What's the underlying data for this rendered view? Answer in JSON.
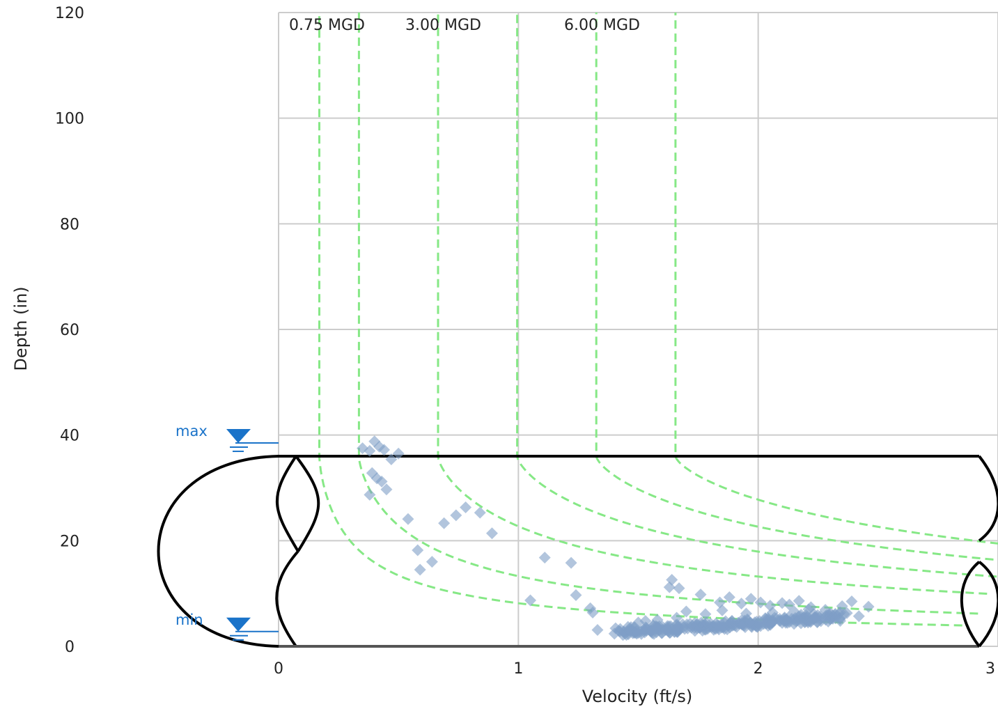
{
  "chart_data": {
    "type": "scatter",
    "xlabel": "Velocity (ft/s)",
    "ylabel": "Depth (in)",
    "xlim": [
      0,
      3
    ],
    "ylim": [
      0,
      120
    ],
    "x_ticks": [
      "0",
      "1",
      "2",
      "3"
    ],
    "y_ticks": [
      "0",
      "20",
      "40",
      "60",
      "80",
      "100",
      "120"
    ],
    "grid": true,
    "pipe_diameter_in": 36,
    "levels": {
      "max": {
        "label": "max",
        "depth": 38.5
      },
      "min": {
        "label": "min",
        "depth": 2.8
      }
    },
    "iso_flow_labels": [
      "0.75 MGD",
      "3.00 MGD",
      "6.00 MGD"
    ],
    "iso_flow_curves": [
      {
        "full_velocity": 0.17
      },
      {
        "full_velocity": 0.335
      },
      {
        "full_velocity": 0.665
      },
      {
        "full_velocity": 0.995
      },
      {
        "full_velocity": 1.325
      },
      {
        "full_velocity": 1.655
      }
    ],
    "series": [
      {
        "points": [
          [
            0.35,
            37.5
          ],
          [
            0.38,
            37.0
          ],
          [
            0.4,
            38.8
          ],
          [
            0.42,
            37.8
          ],
          [
            0.44,
            37.2
          ],
          [
            0.47,
            35.4
          ],
          [
            0.5,
            36.5
          ],
          [
            0.39,
            32.8
          ],
          [
            0.41,
            31.8
          ],
          [
            0.43,
            31.2
          ],
          [
            0.45,
            29.7
          ],
          [
            0.38,
            28.7
          ],
          [
            0.54,
            24.1
          ],
          [
            0.58,
            18.2
          ],
          [
            0.64,
            16.0
          ],
          [
            0.59,
            14.5
          ],
          [
            0.69,
            23.3
          ],
          [
            0.74,
            24.8
          ],
          [
            0.78,
            26.3
          ],
          [
            0.84,
            25.3
          ],
          [
            0.89,
            21.4
          ],
          [
            1.05,
            8.7
          ],
          [
            1.11,
            16.8
          ],
          [
            1.22,
            15.8
          ],
          [
            1.24,
            9.7
          ],
          [
            1.3,
            7.2
          ],
          [
            1.31,
            6.4
          ],
          [
            1.33,
            3.1
          ],
          [
            1.63,
            11.2
          ],
          [
            1.64,
            12.6
          ],
          [
            1.67,
            11.0
          ],
          [
            1.76,
            9.8
          ],
          [
            1.84,
            8.3
          ],
          [
            1.88,
            9.3
          ],
          [
            1.93,
            8.1
          ],
          [
            1.97,
            9.0
          ],
          [
            2.01,
            8.3
          ],
          [
            2.05,
            7.7
          ],
          [
            2.1,
            8.2
          ],
          [
            2.13,
            7.9
          ],
          [
            2.17,
            8.6
          ],
          [
            2.22,
            7.4
          ],
          [
            2.28,
            6.9
          ],
          [
            2.35,
            7.6
          ],
          [
            2.39,
            8.5
          ],
          [
            2.46,
            7.5
          ],
          [
            2.42,
            5.7
          ],
          [
            1.5,
            4.5
          ],
          [
            1.53,
            4.8
          ],
          [
            1.58,
            5.0
          ],
          [
            1.66,
            5.4
          ],
          [
            1.7,
            6.6
          ],
          [
            1.78,
            6.1
          ],
          [
            1.85,
            6.8
          ],
          [
            1.95,
            6.2
          ],
          [
            2.06,
            6.4
          ],
          [
            2.15,
            6.6
          ],
          [
            2.21,
            7.0
          ],
          [
            2.26,
            5.7
          ],
          [
            2.31,
            5.9
          ],
          [
            2.37,
            6.3
          ]
        ],
        "cluster": {
          "x_start": 1.42,
          "x_end": 2.34,
          "depth_start": 2.8,
          "depth_end": 5.7,
          "count": 260
        }
      }
    ]
  }
}
